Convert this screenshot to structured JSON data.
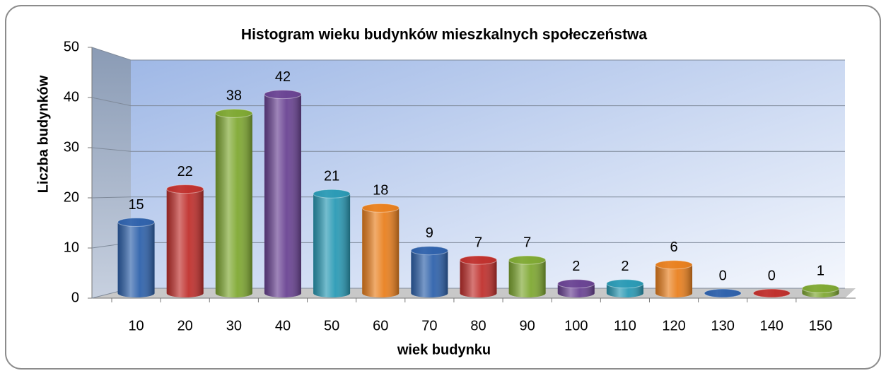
{
  "chart_data": {
    "type": "bar",
    "title": "Histogram wieku budynków mieszkalnych społeczeństwa",
    "x_label": "wiek budynku",
    "y_label": "Liczba budynków",
    "categories": [
      "10",
      "20",
      "30",
      "40",
      "50",
      "60",
      "70",
      "80",
      "90",
      "100",
      "110",
      "120",
      "130",
      "140",
      "150"
    ],
    "values": [
      15,
      22,
      38,
      42,
      21,
      18,
      9,
      7,
      7,
      2,
      2,
      6,
      0,
      0,
      1
    ],
    "colors": [
      "#2f62ab",
      "#c0302d",
      "#7fa832",
      "#6a4393",
      "#2a9ab5",
      "#e9801f",
      "#2f62ab",
      "#c0302d",
      "#7fa832",
      "#6a4393",
      "#2a9ab5",
      "#e9801f",
      "#2f62ab",
      "#c0302d",
      "#7fa832"
    ],
    "ylim": [
      0,
      50
    ],
    "yticks": [
      0,
      10,
      20,
      30,
      40,
      50
    ],
    "grid": true
  }
}
